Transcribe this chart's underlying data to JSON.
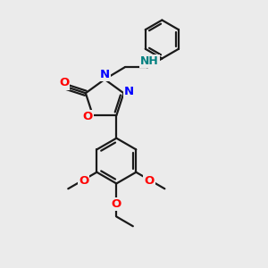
{
  "bg_color": "#ebebeb",
  "bond_color": "#1a1a1a",
  "N_color": "#0000ff",
  "O_color": "#ff0000",
  "NH_color": "#008080",
  "figsize": [
    3.0,
    3.0
  ],
  "dpi": 100,
  "xlim": [
    0,
    10
  ],
  "ylim": [
    0,
    10
  ]
}
